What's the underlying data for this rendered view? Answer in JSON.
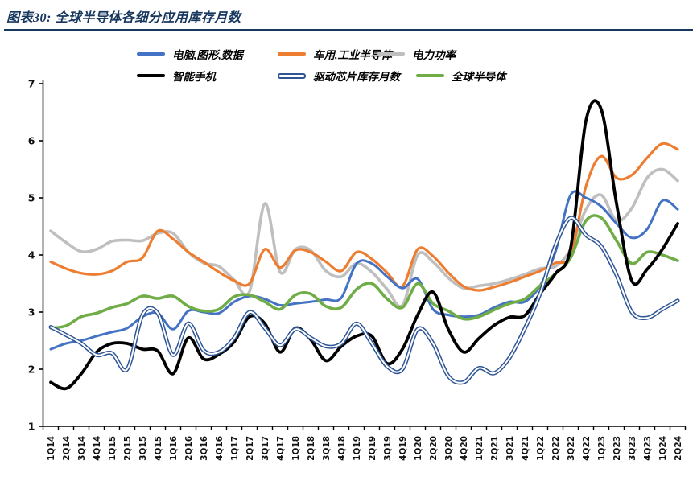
{
  "header": {
    "title": "图表30: 全球半导体各细分应用库存月数"
  },
  "legend": {
    "items": [
      {
        "label": "电脑,图形,数据",
        "color": "#4472C4",
        "style": "solid"
      },
      {
        "label": "车用,工业半导体",
        "color": "#ED7D31",
        "style": "solid"
      },
      {
        "label": "电力功率",
        "color": "#BFBFBF",
        "style": "solid"
      },
      {
        "label": "智能手机",
        "color": "#000000",
        "style": "solid"
      },
      {
        "label": "驱动芯片库存月数",
        "color": "#2E5596",
        "style": "double"
      },
      {
        "label": "全球半导体",
        "color": "#70AD47",
        "style": "solid"
      }
    ]
  },
  "chart_data": {
    "type": "line",
    "title": "图表30: 全球半导体各细分应用库存月数",
    "xlabel": "",
    "ylabel": "",
    "ylim": [
      1,
      7
    ],
    "y_ticks": [
      1,
      2,
      3,
      4,
      5,
      6,
      7
    ],
    "grid": false,
    "legend_position": "top",
    "categories": [
      "1Q14",
      "2Q14",
      "3Q14",
      "4Q14",
      "1Q15",
      "2Q15",
      "3Q15",
      "4Q15",
      "1Q16",
      "2Q16",
      "3Q16",
      "4Q16",
      "1Q17",
      "2Q17",
      "3Q17",
      "4Q17",
      "1Q18",
      "2Q18",
      "3Q18",
      "4Q18",
      "1Q19",
      "2Q19",
      "3Q19",
      "4Q19",
      "1Q20",
      "2Q20",
      "3Q20",
      "4Q20",
      "1Q21",
      "2Q21",
      "3Q21",
      "4Q21",
      "1Q22",
      "2Q22",
      "3Q22",
      "4Q22",
      "1Q23",
      "2Q23",
      "3Q23",
      "4Q23",
      "1Q24",
      "2Q24"
    ],
    "series": [
      {
        "name": "电脑,图形,数据",
        "color": "#4472C4",
        "style": "solid",
        "width": 3.0,
        "values": [
          2.35,
          2.45,
          2.5,
          2.58,
          2.65,
          2.72,
          2.92,
          2.98,
          2.7,
          3.02,
          3.0,
          2.98,
          3.18,
          3.28,
          3.23,
          3.12,
          3.15,
          3.18,
          3.22,
          3.25,
          3.85,
          3.85,
          3.62,
          3.42,
          3.58,
          3.05,
          2.95,
          2.92,
          2.95,
          3.08,
          3.18,
          3.18,
          3.46,
          4.05,
          5.05,
          5.0,
          4.85,
          4.55,
          4.3,
          4.45,
          4.95,
          4.8
        ]
      },
      {
        "name": "车用,工业半导体",
        "color": "#ED7D31",
        "style": "solid",
        "width": 3.2,
        "values": [
          3.88,
          3.76,
          3.68,
          3.66,
          3.72,
          3.88,
          3.95,
          4.42,
          4.28,
          4.05,
          3.88,
          3.7,
          3.55,
          3.5,
          4.1,
          3.78,
          4.08,
          4.05,
          3.88,
          3.72,
          4.05,
          3.93,
          3.69,
          3.45,
          4.1,
          3.98,
          3.69,
          3.45,
          3.38,
          3.44,
          3.52,
          3.62,
          3.72,
          3.86,
          4.0,
          5.2,
          5.73,
          5.35,
          5.4,
          5.7,
          5.95,
          5.85
        ]
      },
      {
        "name": "电力功率",
        "color": "#BFBFBF",
        "style": "solid",
        "width": 3.6,
        "values": [
          4.42,
          4.22,
          4.06,
          4.1,
          4.24,
          4.26,
          4.25,
          4.38,
          4.38,
          4.05,
          3.86,
          3.8,
          3.56,
          3.36,
          4.9,
          3.7,
          4.1,
          4.08,
          3.72,
          3.62,
          3.85,
          3.7,
          3.4,
          3.12,
          4.0,
          3.88,
          3.6,
          3.42,
          3.46,
          3.5,
          3.57,
          3.66,
          3.76,
          3.8,
          4.1,
          4.8,
          5.05,
          4.6,
          4.82,
          5.35,
          5.5,
          5.3
        ]
      },
      {
        "name": "智能手机",
        "color": "#000000",
        "style": "solid",
        "width": 3.8,
        "values": [
          1.77,
          1.66,
          1.92,
          2.3,
          2.45,
          2.45,
          2.35,
          2.32,
          1.92,
          2.55,
          2.18,
          2.26,
          2.48,
          2.92,
          2.8,
          2.3,
          2.72,
          2.52,
          2.15,
          2.4,
          2.58,
          2.58,
          2.1,
          2.35,
          2.95,
          3.35,
          2.7,
          2.3,
          2.54,
          2.77,
          2.91,
          2.94,
          3.32,
          3.67,
          4.12,
          6.35,
          6.55,
          4.9,
          3.55,
          3.75,
          4.1,
          4.55
        ]
      },
      {
        "name": "驱动芯片库存月数",
        "color": "#2E5596",
        "style": "double",
        "width": 5.0,
        "values": [
          2.74,
          2.6,
          2.45,
          2.25,
          2.28,
          2.0,
          2.95,
          2.98,
          2.25,
          2.8,
          2.33,
          2.3,
          2.55,
          3.0,
          2.72,
          2.42,
          2.7,
          2.55,
          2.4,
          2.45,
          2.8,
          2.45,
          2.05,
          2.0,
          2.7,
          2.45,
          1.88,
          1.77,
          2.02,
          1.93,
          2.2,
          2.71,
          3.32,
          4.16,
          4.65,
          4.35,
          4.15,
          3.65,
          3.0,
          2.9,
          3.05,
          3.2
        ]
      },
      {
        "name": "全球半导体",
        "color": "#70AD47",
        "style": "solid",
        "width": 3.6,
        "values": [
          2.72,
          2.76,
          2.92,
          2.98,
          3.08,
          3.15,
          3.28,
          3.24,
          3.28,
          3.1,
          3.02,
          3.05,
          3.27,
          3.3,
          3.18,
          3.05,
          3.3,
          3.32,
          3.1,
          3.08,
          3.4,
          3.5,
          3.23,
          3.08,
          3.5,
          3.15,
          3.02,
          2.88,
          2.92,
          3.04,
          3.15,
          3.23,
          3.46,
          3.67,
          3.95,
          4.6,
          4.65,
          4.25,
          3.85,
          4.05,
          4.0,
          3.9
        ]
      }
    ]
  }
}
